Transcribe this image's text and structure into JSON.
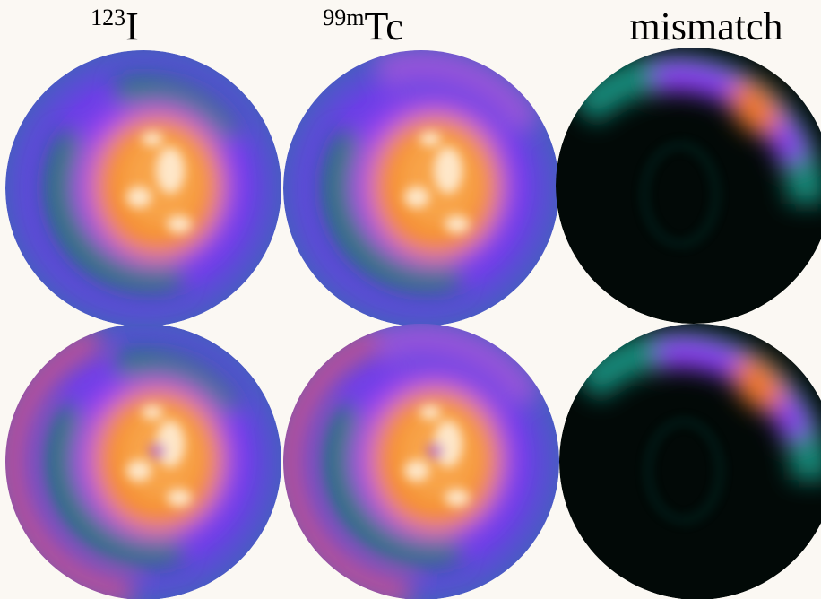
{
  "headers": [
    {
      "sup": "123",
      "main": "I"
    },
    {
      "sup": "99m",
      "main": "Tc"
    },
    {
      "main": "mismatch"
    }
  ]
}
